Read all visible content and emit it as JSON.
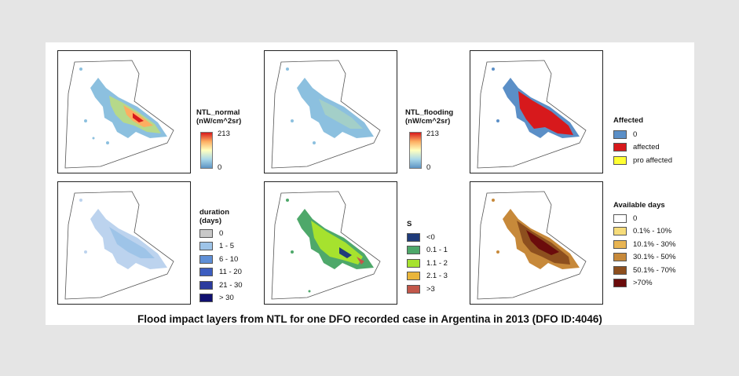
{
  "caption": "Flood impact layers from NTL for one DFO recorded case in Argentina in 2013 (DFO ID:4046)",
  "legends": {
    "ntl_normal": {
      "title": "NTL_normal",
      "unit": "(nW/cm^2sr)",
      "max": "213",
      "min": "0"
    },
    "ntl_flooding": {
      "title": "NTL_flooding",
      "unit": "(nW/cm^2sr)",
      "max": "213",
      "min": "0"
    },
    "affected": {
      "title": "Affected",
      "items": [
        {
          "label": "0",
          "color": "#5b8fc7"
        },
        {
          "label": "affected",
          "color": "#d7191c"
        },
        {
          "label": "pro affected",
          "color": "#ffff33"
        }
      ]
    },
    "duration": {
      "title": "duration",
      "unit": "(days)",
      "items": [
        {
          "label": "0",
          "color": "#c8c8c8"
        },
        {
          "label": "1 - 5",
          "color": "#9ec4e8"
        },
        {
          "label": "6 - 10",
          "color": "#5f8fd6"
        },
        {
          "label": "11 - 20",
          "color": "#3c5dc0"
        },
        {
          "label": "21 - 30",
          "color": "#2b3b9e"
        },
        {
          "label": "> 30",
          "color": "#101070"
        }
      ]
    },
    "s": {
      "title": "S",
      "items": [
        {
          "label": "<0",
          "color": "#1f3b7a"
        },
        {
          "label": "0.1 - 1",
          "color": "#4ea86a"
        },
        {
          "label": "1.1 - 2",
          "color": "#a6e22e"
        },
        {
          "label": "2.1 - 3",
          "color": "#e9b53a"
        },
        {
          "label": ">3",
          "color": "#c2574a"
        }
      ]
    },
    "available_days": {
      "title": "Available days",
      "items": [
        {
          "label": "0",
          "color": "#ffffff"
        },
        {
          "label": "0.1% - 10%",
          "color": "#f6dc7a"
        },
        {
          "label": "10.1% - 30%",
          "color": "#e8b452"
        },
        {
          "label": "30.1% - 50%",
          "color": "#c7893a"
        },
        {
          "label": "50.1% - 70%",
          "color": "#8d4f1e"
        },
        {
          "label": ">70%",
          "color": "#6b0c0c"
        }
      ]
    }
  }
}
